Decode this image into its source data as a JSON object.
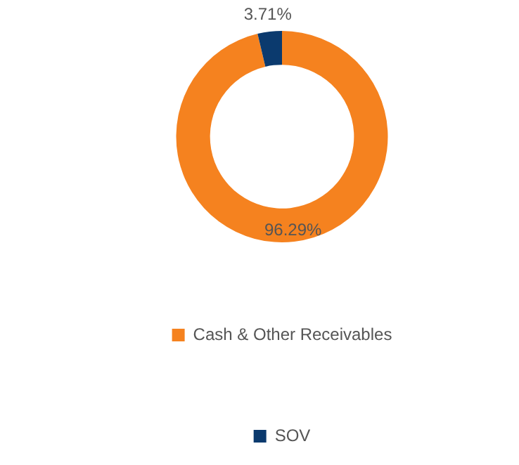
{
  "chart_data": {
    "type": "donut",
    "categories": [
      "Cash & Other Receivables",
      "SOV"
    ],
    "values": [
      96.29,
      3.71
    ],
    "colors": [
      "#f5821f",
      "#0b3a6e"
    ],
    "value_labels": [
      "96.29%",
      "3.71%"
    ],
    "legend": "bottom"
  }
}
